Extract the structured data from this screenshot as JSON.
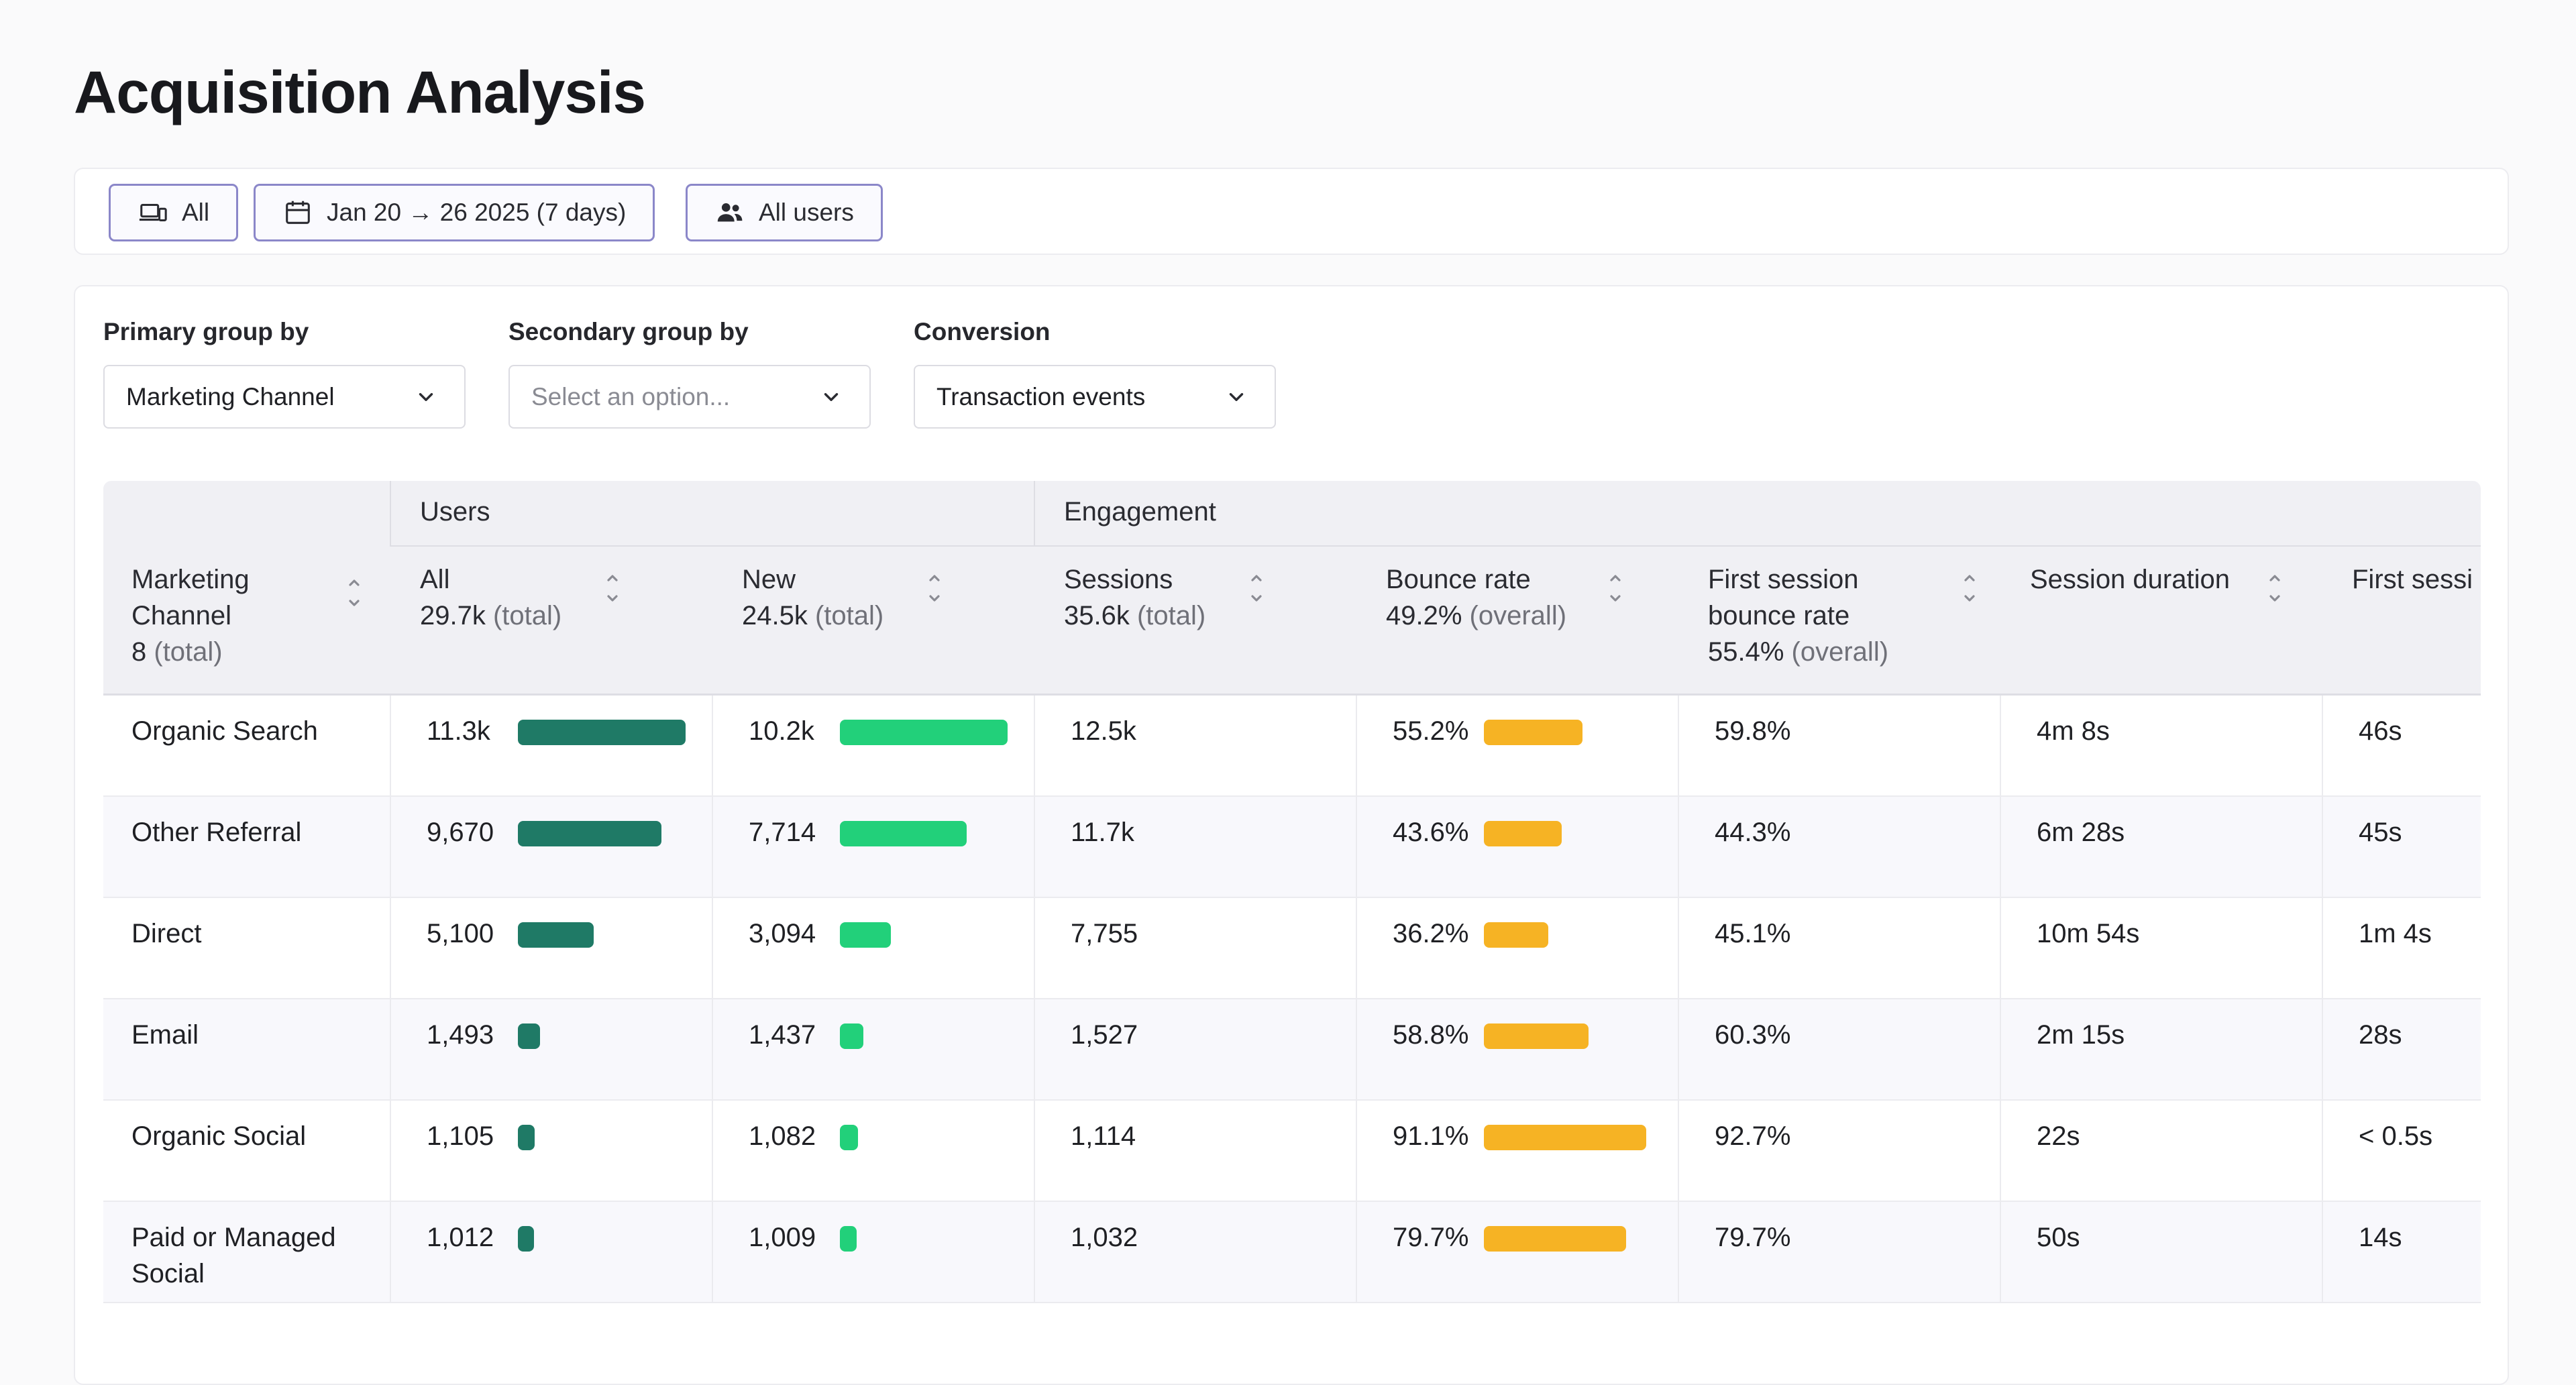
{
  "page": {
    "title": "Acquisition Analysis"
  },
  "filters": {
    "device": "All",
    "date_range": "Jan 20 → 26 2025 (7 days)",
    "audience": "All users"
  },
  "controls": {
    "primary": {
      "label": "Primary group by",
      "value": "Marketing Channel"
    },
    "secondary": {
      "label": "Secondary group by",
      "placeholder": "Select an option..."
    },
    "conversion": {
      "label": "Conversion",
      "value": "Transaction events"
    }
  },
  "table": {
    "groups": {
      "users": "Users",
      "engagement": "Engagement"
    },
    "columns": {
      "channel": {
        "line1": "Marketing",
        "line2": "Channel",
        "total": "8",
        "total_suffix": "(total)"
      },
      "all": {
        "label": "All",
        "total": "29.7k",
        "total_suffix": "(total)"
      },
      "new": {
        "label": "New",
        "total": "24.5k",
        "total_suffix": "(total)"
      },
      "sessions": {
        "label": "Sessions",
        "total": "35.6k",
        "total_suffix": "(total)"
      },
      "bounce": {
        "label": "Bounce rate",
        "total": "49.2%",
        "total_suffix": "(overall)"
      },
      "fs_bounce": {
        "line1": "First session",
        "line2": "bounce rate",
        "total": "55.4%",
        "total_suffix": "(overall)"
      },
      "duration": {
        "label": "Session duration"
      },
      "fs_duration": {
        "label": "First sessi"
      }
    },
    "rows": [
      {
        "channel": "Organic Search",
        "all": "11.3k",
        "all_frac": 1.0,
        "new": "10.2k",
        "new_frac": 1.0,
        "sessions": "12.5k",
        "bounce": "55.2%",
        "bounce_frac": 0.606,
        "fs_bounce": "59.8%",
        "duration": "4m 8s",
        "fs_duration": "46s"
      },
      {
        "channel": "Other Referral",
        "all": "9,670",
        "all_frac": 0.856,
        "new": "7,714",
        "new_frac": 0.756,
        "sessions": "11.7k",
        "bounce": "43.6%",
        "bounce_frac": 0.479,
        "fs_bounce": "44.3%",
        "duration": "6m 28s",
        "fs_duration": "45s"
      },
      {
        "channel": "Direct",
        "all": "5,100",
        "all_frac": 0.451,
        "new": "3,094",
        "new_frac": 0.303,
        "sessions": "7,755",
        "bounce": "36.2%",
        "bounce_frac": 0.397,
        "fs_bounce": "45.1%",
        "duration": "10m 54s",
        "fs_duration": "1m 4s"
      },
      {
        "channel": "Email",
        "all": "1,493",
        "all_frac": 0.132,
        "new": "1,437",
        "new_frac": 0.141,
        "sessions": "1,527",
        "bounce": "58.8%",
        "bounce_frac": 0.645,
        "fs_bounce": "60.3%",
        "duration": "2m 15s",
        "fs_duration": "28s"
      },
      {
        "channel": "Organic Social",
        "all": "1,105",
        "all_frac": 0.098,
        "new": "1,082",
        "new_frac": 0.106,
        "sessions": "1,114",
        "bounce": "91.1%",
        "bounce_frac": 1.0,
        "fs_bounce": "92.7%",
        "duration": "22s",
        "fs_duration": "< 0.5s"
      },
      {
        "channel": "Paid or Managed",
        "channel_line2": "Social",
        "all": "1,012",
        "all_frac": 0.09,
        "new": "1,009",
        "new_frac": 0.099,
        "sessions": "1,032",
        "bounce": "79.7%",
        "bounce_frac": 0.875,
        "fs_bounce": "79.7%",
        "duration": "50s",
        "fs_duration": "14s"
      }
    ]
  },
  "colors": {
    "users_all_bar": "#1f7a66",
    "users_new_bar": "#22d07a",
    "bounce_bar": "#f6b324"
  }
}
